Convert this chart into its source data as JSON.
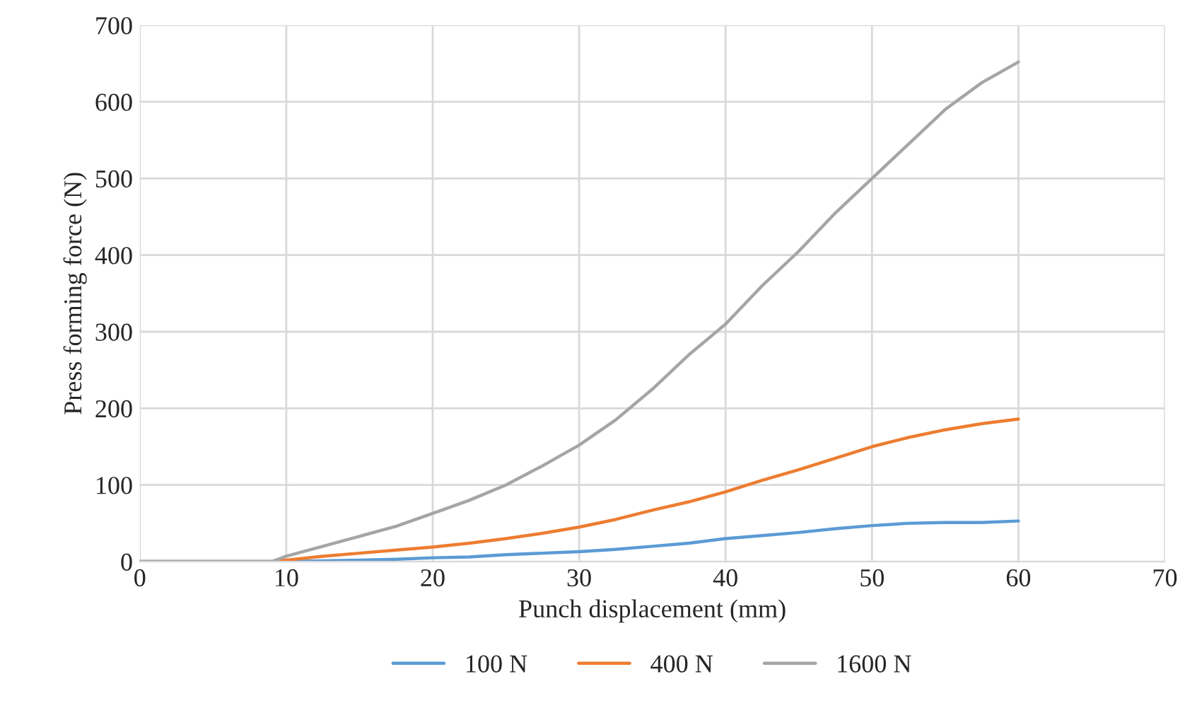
{
  "chart_data": {
    "type": "line",
    "xlabel": "Punch displacement (mm)",
    "ylabel": "Press forming force (N)",
    "x": [
      0,
      9,
      10,
      12.5,
      15,
      17.5,
      20,
      22.5,
      25,
      27.5,
      30,
      32.5,
      35,
      37.5,
      40,
      42.5,
      45,
      47.5,
      50,
      52.5,
      55,
      57.5,
      60
    ],
    "series": [
      {
        "name": "100 N",
        "color": "#5b9bd5",
        "values": [
          0,
          0,
          0,
          1,
          2,
          3,
          5,
          6,
          9,
          11,
          13,
          16,
          20,
          24,
          30,
          34,
          38,
          43,
          47,
          50,
          51,
          51,
          53
        ]
      },
      {
        "name": "400 N",
        "color": "#ed7d31",
        "values": [
          0,
          0,
          2,
          7,
          11,
          15,
          19,
          24,
          30,
          37,
          45,
          55,
          67,
          78,
          91,
          106,
          120,
          135,
          150,
          162,
          172,
          180,
          186
        ]
      },
      {
        "name": "1600 N",
        "color": "#a5a5a5",
        "values": [
          0,
          0,
          7,
          20,
          33,
          46,
          63,
          80,
          100,
          125,
          152,
          185,
          225,
          270,
          310,
          360,
          405,
          455,
          500,
          545,
          590,
          625,
          652
        ]
      }
    ],
    "xlim": [
      0,
      70
    ],
    "xticks": [
      0,
      10,
      20,
      30,
      40,
      50,
      60,
      70
    ],
    "ylim": [
      0,
      700
    ],
    "yticks": [
      0,
      100,
      200,
      300,
      400,
      500,
      600,
      700
    ],
    "grid": true,
    "legend": "bottom",
    "marker": "none",
    "line_style": "solid"
  }
}
